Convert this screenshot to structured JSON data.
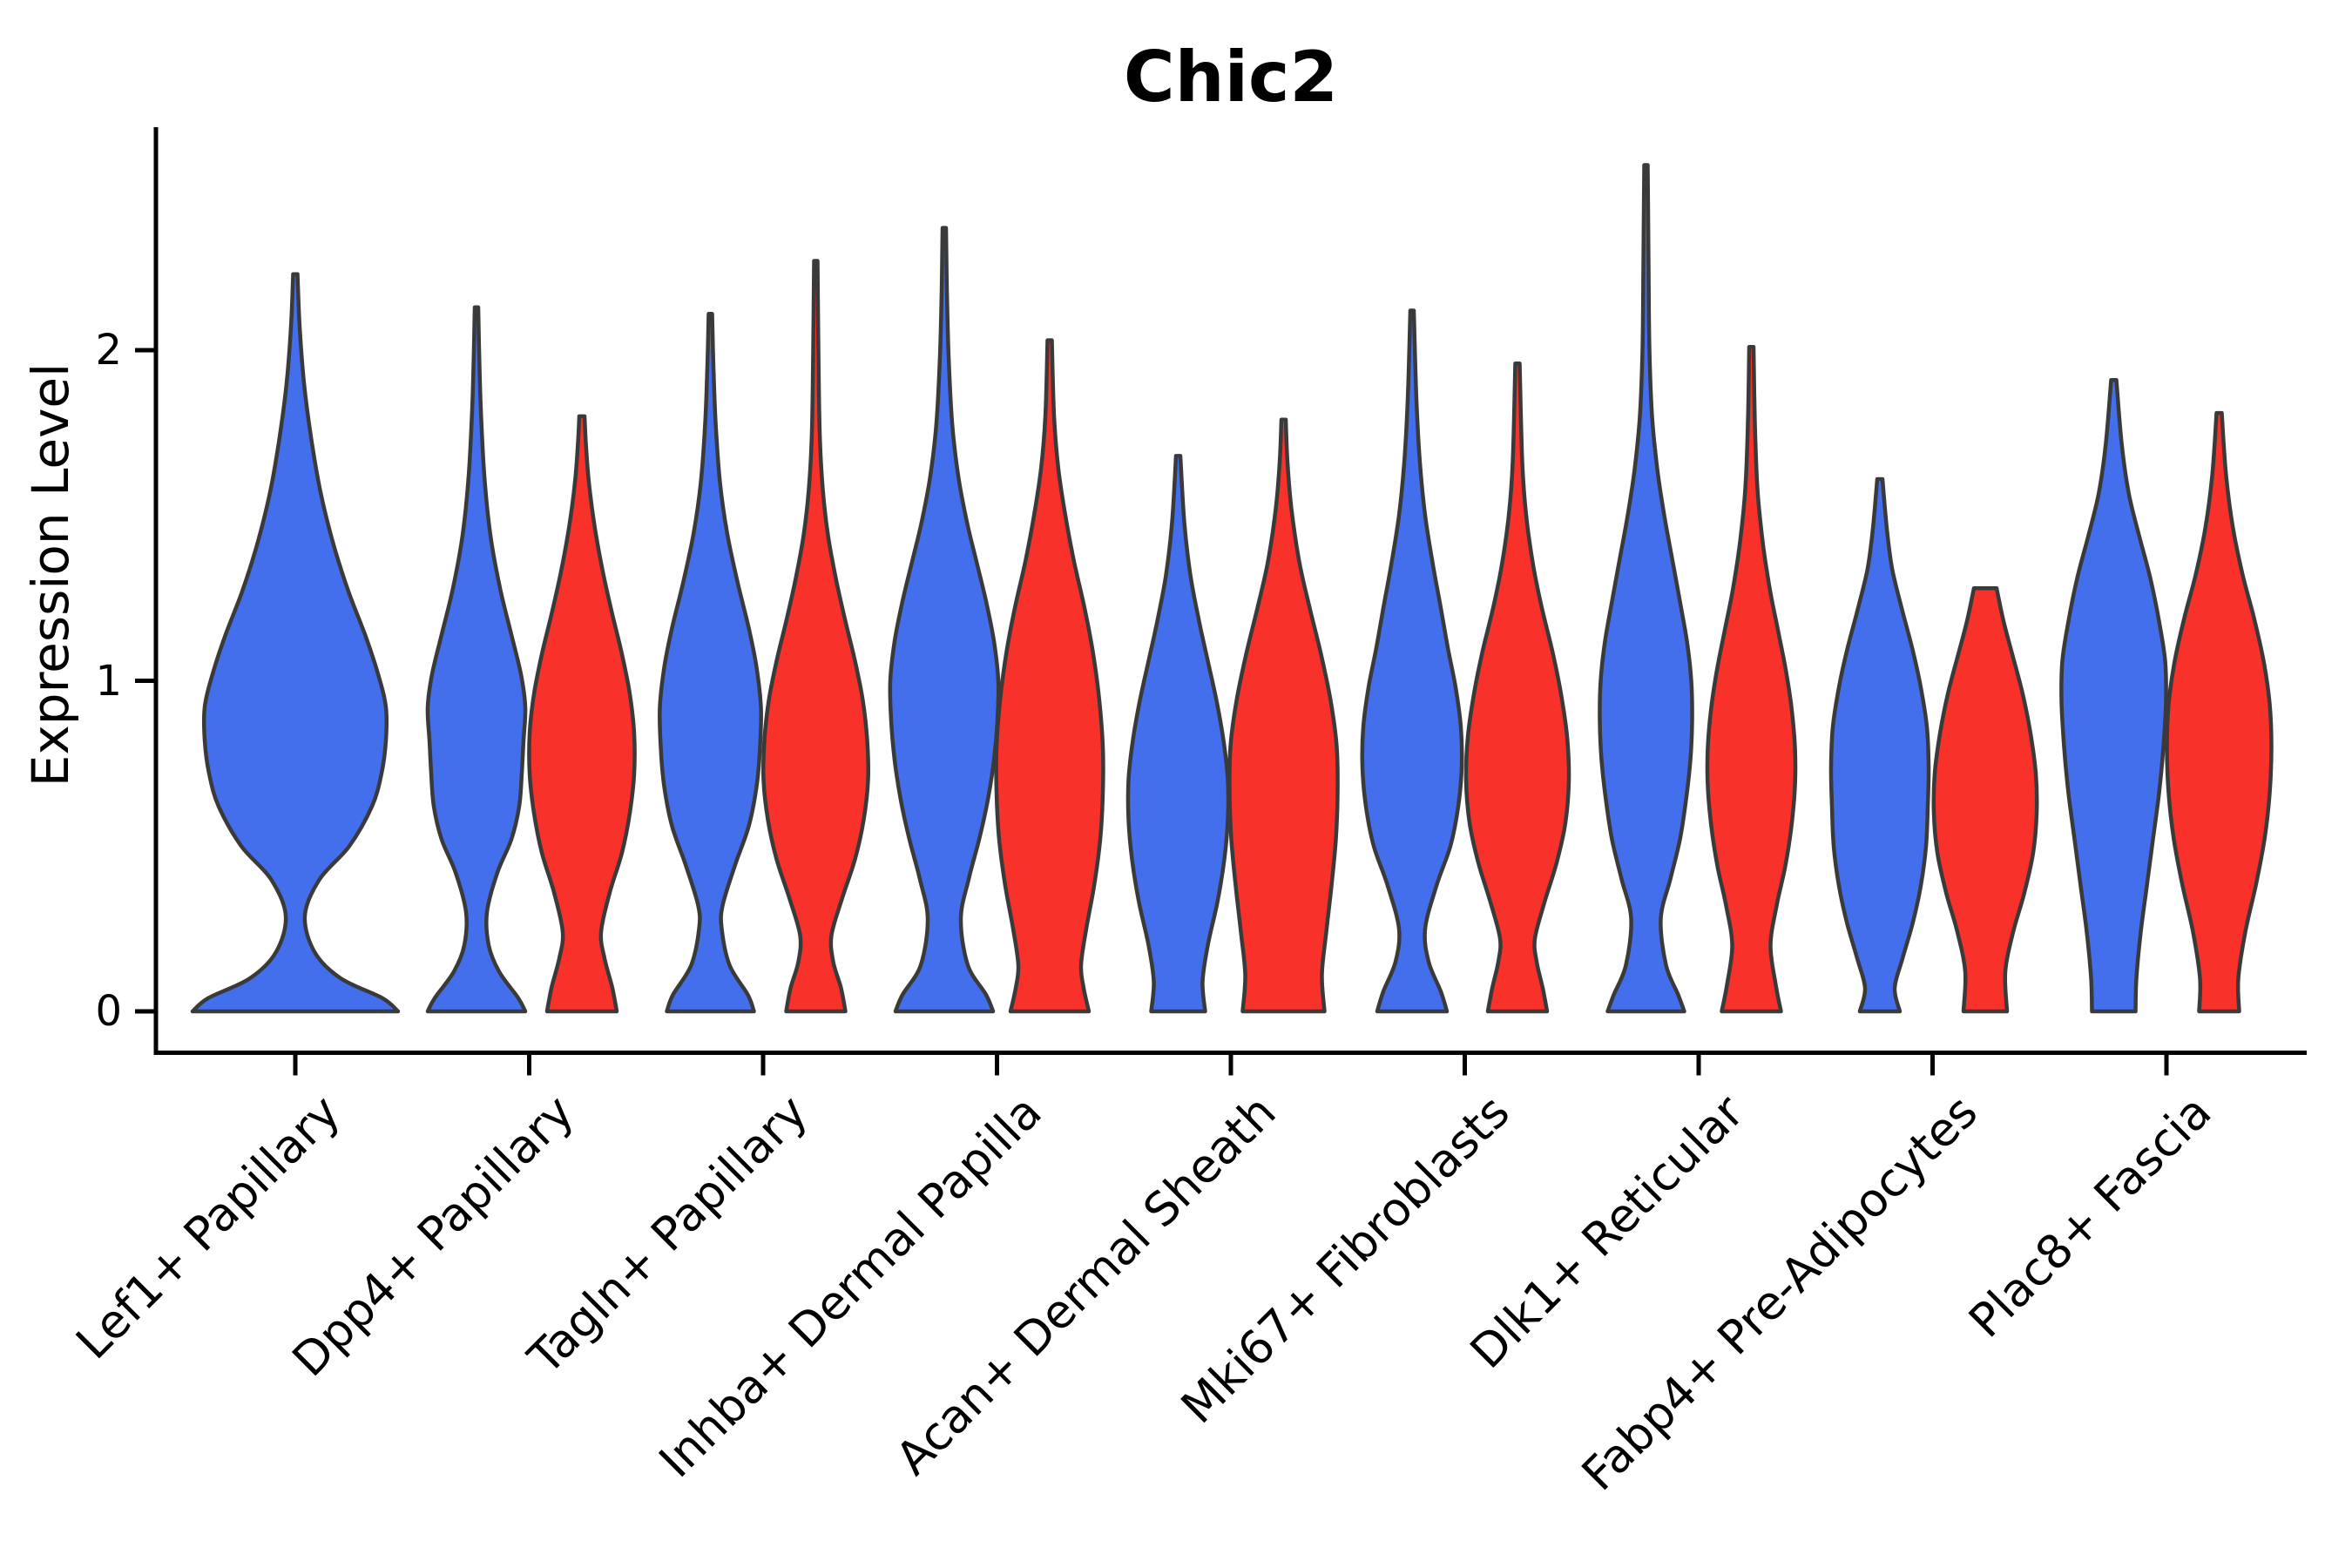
{
  "title": "Chic2",
  "y_axis": {
    "label": "Expression Level",
    "tick_labels": [
      "0",
      "1",
      "2"
    ]
  },
  "colors": {
    "series_blue": "#446FEC",
    "series_red": "#F8312B",
    "violin_outline": "#3a3a3a",
    "axis": "#000000",
    "background": "#ffffff"
  },
  "chart_data": {
    "type": "violin",
    "title": "Chic2",
    "xlabel": "",
    "ylabel": "Expression Level",
    "ylim": [
      0,
      2.67
    ],
    "yticks": [
      0,
      1,
      2
    ],
    "grid": false,
    "legend_position": "none",
    "categories": [
      "Lef1+ Papillary",
      "Dpp4+ Papillary",
      "Tagln+ Papillary",
      "Inhba+ Dermal Papilla",
      "Acan+ Dermal Sheath",
      "Mki67+ Fibroblasts",
      "Dlk1+ Reticular",
      "Fabp4+ Pre-Adipocytes",
      "Plac8+ Fascia"
    ],
    "series": [
      {
        "name": "blue",
        "color": "#446FEC"
      },
      {
        "name": "red",
        "color": "#F8312B"
      }
    ],
    "violins": [
      {
        "category_index": 0,
        "series": "blue",
        "center_x": 339,
        "max_value": 2.23,
        "profile": [
          [
            0,
            118
          ],
          [
            0.04,
            100
          ],
          [
            0.1,
            52
          ],
          [
            0.18,
            22
          ],
          [
            0.29,
            11
          ],
          [
            0.4,
            28
          ],
          [
            0.5,
            62
          ],
          [
            0.62,
            88
          ],
          [
            0.72,
            99
          ],
          [
            0.82,
            104
          ],
          [
            0.92,
            104
          ],
          [
            1.02,
            95
          ],
          [
            1.14,
            80
          ],
          [
            1.27,
            61
          ],
          [
            1.42,
            43
          ],
          [
            1.57,
            29
          ],
          [
            1.72,
            19
          ],
          [
            1.9,
            10
          ],
          [
            2.07,
            5
          ],
          [
            2.23,
            2.5
          ]
        ]
      },
      {
        "category_index": 1,
        "series": "blue",
        "center_x": 547,
        "max_value": 2.13,
        "profile": [
          [
            0,
            56
          ],
          [
            0.04,
            48
          ],
          [
            0.12,
            26
          ],
          [
            0.2,
            14
          ],
          [
            0.3,
            12
          ],
          [
            0.42,
            24
          ],
          [
            0.52,
            40
          ],
          [
            0.62,
            49
          ],
          [
            0.72,
            52
          ],
          [
            0.82,
            54
          ],
          [
            0.92,
            56
          ],
          [
            1.02,
            51
          ],
          [
            1.14,
            40
          ],
          [
            1.28,
            27
          ],
          [
            1.44,
            16
          ],
          [
            1.62,
            9
          ],
          [
            1.82,
            5
          ],
          [
            2.0,
            3
          ],
          [
            2.13,
            2
          ]
        ]
      },
      {
        "category_index": 1,
        "series": "red",
        "center_x": 668,
        "max_value": 1.8,
        "profile": [
          [
            0,
            40
          ],
          [
            0.07,
            35
          ],
          [
            0.16,
            26
          ],
          [
            0.24,
            22
          ],
          [
            0.36,
            32
          ],
          [
            0.48,
            46
          ],
          [
            0.6,
            55
          ],
          [
            0.72,
            60
          ],
          [
            0.84,
            60
          ],
          [
            0.96,
            55
          ],
          [
            1.08,
            46
          ],
          [
            1.2,
            35
          ],
          [
            1.33,
            24
          ],
          [
            1.46,
            15
          ],
          [
            1.6,
            8
          ],
          [
            1.72,
            4.5
          ],
          [
            1.8,
            3
          ]
        ]
      },
      {
        "category_index": 2,
        "series": "blue",
        "center_x": 815.5,
        "max_value": 2.11,
        "profile": [
          [
            0,
            50
          ],
          [
            0.05,
            43
          ],
          [
            0.14,
            22
          ],
          [
            0.25,
            13
          ],
          [
            0.32,
            14
          ],
          [
            0.44,
            28
          ],
          [
            0.56,
            44
          ],
          [
            0.68,
            53
          ],
          [
            0.8,
            57
          ],
          [
            0.92,
            58
          ],
          [
            1.04,
            53
          ],
          [
            1.16,
            44
          ],
          [
            1.3,
            31
          ],
          [
            1.45,
            19
          ],
          [
            1.6,
            11
          ],
          [
            1.78,
            6
          ],
          [
            1.95,
            3.5
          ],
          [
            2.11,
            2
          ]
        ]
      },
      {
        "category_index": 2,
        "series": "red",
        "center_x": 936.5,
        "max_value": 2.27,
        "profile": [
          [
            0,
            34
          ],
          [
            0.07,
            29
          ],
          [
            0.15,
            20
          ],
          [
            0.23,
            18
          ],
          [
            0.34,
            30
          ],
          [
            0.46,
            45
          ],
          [
            0.58,
            55
          ],
          [
            0.7,
            60
          ],
          [
            0.82,
            59
          ],
          [
            0.94,
            54
          ],
          [
            1.06,
            45
          ],
          [
            1.18,
            34
          ],
          [
            1.31,
            23
          ],
          [
            1.44,
            14
          ],
          [
            1.58,
            8
          ],
          [
            1.75,
            4.5
          ],
          [
            2.0,
            3
          ],
          [
            2.27,
            2
          ]
        ]
      },
      {
        "category_index": 3,
        "series": "blue",
        "center_x": 1084,
        "max_value": 2.37,
        "profile": [
          [
            0,
            56
          ],
          [
            0.05,
            48
          ],
          [
            0.14,
            27
          ],
          [
            0.28,
            19
          ],
          [
            0.4,
            28
          ],
          [
            0.52,
            40
          ],
          [
            0.64,
            50
          ],
          [
            0.76,
            57
          ],
          [
            0.88,
            61
          ],
          [
            1.0,
            62
          ],
          [
            1.12,
            57
          ],
          [
            1.24,
            48
          ],
          [
            1.36,
            37
          ],
          [
            1.48,
            26
          ],
          [
            1.62,
            16
          ],
          [
            1.78,
            9
          ],
          [
            1.98,
            5
          ],
          [
            2.18,
            3
          ],
          [
            2.37,
            2
          ]
        ]
      },
      {
        "category_index": 3,
        "series": "red",
        "center_x": 1205,
        "max_value": 2.03,
        "profile": [
          [
            0,
            45
          ],
          [
            0.07,
            39
          ],
          [
            0.14,
            36
          ],
          [
            0.25,
            42
          ],
          [
            0.38,
            51
          ],
          [
            0.52,
            58
          ],
          [
            0.66,
            61
          ],
          [
            0.8,
            61
          ],
          [
            0.94,
            57
          ],
          [
            1.08,
            50
          ],
          [
            1.22,
            40
          ],
          [
            1.36,
            28
          ],
          [
            1.5,
            18
          ],
          [
            1.64,
            10
          ],
          [
            1.8,
            5
          ],
          [
            2.03,
            2.5
          ]
        ]
      },
      {
        "category_index": 4,
        "series": "blue",
        "center_x": 1352.5,
        "max_value": 1.68,
        "profile": [
          [
            0,
            31
          ],
          [
            0.09,
            28
          ],
          [
            0.2,
            34
          ],
          [
            0.33,
            45
          ],
          [
            0.46,
            53
          ],
          [
            0.58,
            57
          ],
          [
            0.7,
            57
          ],
          [
            0.82,
            52
          ],
          [
            0.94,
            44
          ],
          [
            1.06,
            34
          ],
          [
            1.18,
            24
          ],
          [
            1.32,
            14
          ],
          [
            1.48,
            7
          ],
          [
            1.68,
            2.5
          ]
        ]
      },
      {
        "category_index": 4,
        "series": "red",
        "center_x": 1473.5,
        "max_value": 1.79,
        "profile": [
          [
            0,
            47
          ],
          [
            0.11,
            44
          ],
          [
            0.24,
            49
          ],
          [
            0.38,
            55
          ],
          [
            0.52,
            60
          ],
          [
            0.66,
            62
          ],
          [
            0.8,
            61
          ],
          [
            0.94,
            54
          ],
          [
            1.08,
            43
          ],
          [
            1.22,
            30
          ],
          [
            1.36,
            18
          ],
          [
            1.52,
            9
          ],
          [
            1.66,
            4.5
          ],
          [
            1.79,
            2.5
          ]
        ]
      },
      {
        "category_index": 5,
        "series": "blue",
        "center_x": 1621,
        "max_value": 2.12,
        "profile": [
          [
            0,
            40
          ],
          [
            0.06,
            33
          ],
          [
            0.15,
            19
          ],
          [
            0.25,
            15
          ],
          [
            0.38,
            28
          ],
          [
            0.5,
            44
          ],
          [
            0.62,
            53
          ],
          [
            0.74,
            57
          ],
          [
            0.86,
            56
          ],
          [
            0.98,
            50
          ],
          [
            1.1,
            41
          ],
          [
            1.22,
            33
          ],
          [
            1.35,
            24
          ],
          [
            1.5,
            15
          ],
          [
            1.66,
            9
          ],
          [
            1.85,
            5
          ],
          [
            2.12,
            2
          ]
        ]
      },
      {
        "category_index": 5,
        "series": "red",
        "center_x": 1742,
        "max_value": 1.96,
        "profile": [
          [
            0,
            34
          ],
          [
            0.07,
            29
          ],
          [
            0.15,
            22
          ],
          [
            0.22,
            20
          ],
          [
            0.33,
            31
          ],
          [
            0.45,
            45
          ],
          [
            0.57,
            55
          ],
          [
            0.7,
            59
          ],
          [
            0.83,
            57
          ],
          [
            0.96,
            50
          ],
          [
            1.09,
            40
          ],
          [
            1.22,
            28
          ],
          [
            1.35,
            18
          ],
          [
            1.5,
            10
          ],
          [
            1.66,
            5.5
          ],
          [
            1.96,
            2.5
          ]
        ]
      },
      {
        "category_index": 6,
        "series": "blue",
        "center_x": 1889.5,
        "max_value": 2.56,
        "profile": [
          [
            0,
            44
          ],
          [
            0.05,
            37
          ],
          [
            0.14,
            23
          ],
          [
            0.28,
            17
          ],
          [
            0.4,
            28
          ],
          [
            0.52,
            39
          ],
          [
            0.64,
            46
          ],
          [
            0.76,
            51
          ],
          [
            0.88,
            53
          ],
          [
            1.0,
            52
          ],
          [
            1.12,
            47
          ],
          [
            1.24,
            39
          ],
          [
            1.37,
            30
          ],
          [
            1.5,
            21
          ],
          [
            1.64,
            13
          ],
          [
            1.8,
            7
          ],
          [
            2.0,
            4
          ],
          [
            2.25,
            3
          ],
          [
            2.56,
            2
          ]
        ]
      },
      {
        "category_index": 6,
        "series": "red",
        "center_x": 2010.5,
        "max_value": 2.01,
        "profile": [
          [
            0,
            34
          ],
          [
            0.08,
            28
          ],
          [
            0.2,
            22
          ],
          [
            0.32,
            29
          ],
          [
            0.44,
            39
          ],
          [
            0.56,
            46
          ],
          [
            0.68,
            50
          ],
          [
            0.8,
            50
          ],
          [
            0.92,
            46
          ],
          [
            1.04,
            39
          ],
          [
            1.16,
            30
          ],
          [
            1.28,
            21
          ],
          [
            1.42,
            13
          ],
          [
            1.58,
            7
          ],
          [
            1.78,
            4
          ],
          [
            2.01,
            2.5
          ]
        ]
      },
      {
        "category_index": 7,
        "series": "blue",
        "center_x": 2158,
        "max_value": 1.61,
        "profile": [
          [
            0,
            23
          ],
          [
            0.07,
            17
          ],
          [
            0.16,
            26
          ],
          [
            0.27,
            38
          ],
          [
            0.38,
            47
          ],
          [
            0.5,
            53
          ],
          [
            0.62,
            55
          ],
          [
            0.74,
            56
          ],
          [
            0.86,
            54
          ],
          [
            0.98,
            47
          ],
          [
            1.1,
            37
          ],
          [
            1.22,
            25
          ],
          [
            1.34,
            14
          ],
          [
            1.46,
            8
          ],
          [
            1.61,
            3
          ]
        ]
      },
      {
        "category_index": 7,
        "series": "red",
        "center_x": 2279,
        "max_value": 1.28,
        "flat_top": true,
        "profile": [
          [
            0,
            25
          ],
          [
            0.12,
            23
          ],
          [
            0.24,
            32
          ],
          [
            0.36,
            45
          ],
          [
            0.48,
            55
          ],
          [
            0.6,
            59
          ],
          [
            0.72,
            58
          ],
          [
            0.84,
            52
          ],
          [
            0.96,
            43
          ],
          [
            1.08,
            31
          ],
          [
            1.18,
            21
          ],
          [
            1.28,
            13
          ]
        ]
      },
      {
        "category_index": 8,
        "series": "blue",
        "center_x": 2426.5,
        "max_value": 1.91,
        "profile": [
          [
            0,
            25
          ],
          [
            0.1,
            26
          ],
          [
            0.24,
            31
          ],
          [
            0.38,
            38
          ],
          [
            0.52,
            45
          ],
          [
            0.66,
            52
          ],
          [
            0.8,
            57
          ],
          [
            0.94,
            60
          ],
          [
            1.06,
            59
          ],
          [
            1.18,
            52
          ],
          [
            1.31,
            42
          ],
          [
            1.44,
            29
          ],
          [
            1.57,
            17
          ],
          [
            1.72,
            9
          ],
          [
            1.91,
            3
          ]
        ]
      },
      {
        "category_index": 8,
        "series": "red",
        "center_x": 2547.5,
        "max_value": 1.81,
        "profile": [
          [
            0,
            23
          ],
          [
            0.1,
            22
          ],
          [
            0.24,
            30
          ],
          [
            0.38,
            42
          ],
          [
            0.52,
            52
          ],
          [
            0.66,
            58
          ],
          [
            0.8,
            60
          ],
          [
            0.93,
            58
          ],
          [
            1.06,
            51
          ],
          [
            1.19,
            40
          ],
          [
            1.32,
            27
          ],
          [
            1.46,
            16
          ],
          [
            1.62,
            8
          ],
          [
            1.81,
            3
          ]
        ]
      }
    ]
  }
}
